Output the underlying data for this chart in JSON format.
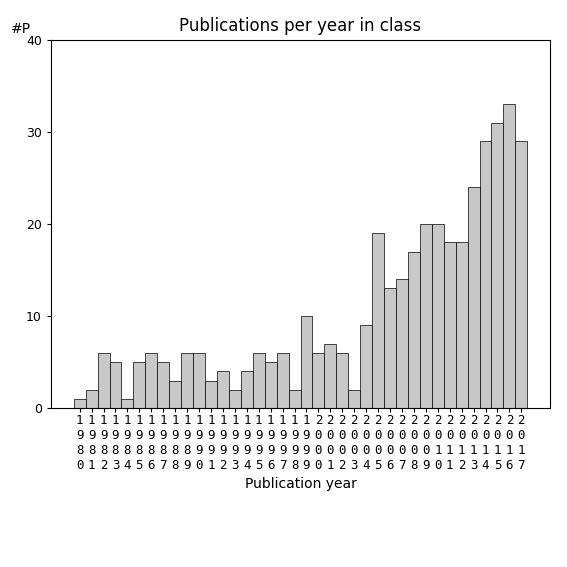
{
  "title": "Publications per year in class",
  "xlabel": "Publication year",
  "ylabel": "#P",
  "years": [
    1980,
    1981,
    1982,
    1983,
    1984,
    1985,
    1986,
    1987,
    1988,
    1989,
    1990,
    1991,
    1992,
    1993,
    1994,
    1995,
    1996,
    1997,
    1998,
    1999,
    2000,
    2001,
    2002,
    2003,
    2004,
    2005,
    2006,
    2007,
    2008,
    2009,
    2010,
    2011,
    2012,
    2013,
    2014,
    2015,
    2016,
    2017
  ],
  "values": [
    1,
    2,
    6,
    5,
    1,
    5,
    6,
    5,
    3,
    6,
    6,
    3,
    4,
    2,
    4,
    6,
    5,
    6,
    2,
    10,
    6,
    7,
    6,
    2,
    9,
    19,
    13,
    14,
    17,
    20,
    20,
    18,
    18,
    24,
    29,
    31,
    33,
    29
  ],
  "bar_color": "#c8c8c8",
  "bar_edgecolor": "#000000",
  "ylim": [
    0,
    40
  ],
  "yticks": [
    0,
    10,
    20,
    30,
    40
  ],
  "background_color": "#ffffff",
  "title_fontsize": 12,
  "label_fontsize": 10,
  "tick_fontsize": 9
}
